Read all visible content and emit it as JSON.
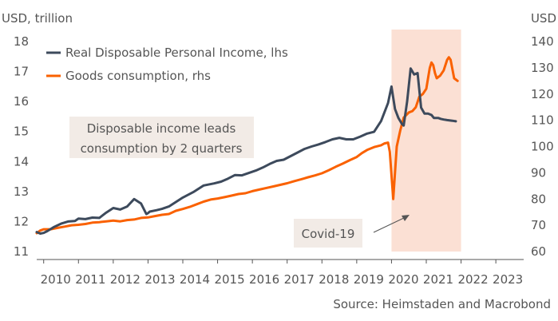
{
  "chart_data": {
    "type": "line",
    "left_axis_unit": "USD, trillion",
    "right_axis_unit": "USD",
    "x_ticks": [
      "2010",
      "2011",
      "2012",
      "2013",
      "2014",
      "2015",
      "2016",
      "2017",
      "2018",
      "2019",
      "2020",
      "2021",
      "2022",
      "2023"
    ],
    "xlim": [
      2009.8,
      2023.8
    ],
    "y_left": {
      "ylim": [
        11,
        18
      ],
      "ticks": [
        11,
        12,
        13,
        14,
        15,
        16,
        17,
        18
      ]
    },
    "y_right": {
      "ylim": [
        60,
        140
      ],
      "ticks": [
        60,
        70,
        80,
        90,
        100,
        110,
        120,
        130,
        140
      ]
    },
    "shaded_region": {
      "label": "Covid-19",
      "x_range": [
        2020.0,
        2022.0
      ],
      "color": "#fbe0d4"
    },
    "annotation": {
      "lines": [
        "Disposable income leads",
        "consumption by 2 quarters"
      ]
    },
    "colors": {
      "income": "#3d4a5c",
      "consumption": "#fa6100"
    },
    "source": "Source: Heimstaden and Macrobond",
    "series": [
      {
        "name": "Real Disposable Personal Income, lhs",
        "axis": "left",
        "x": [
          2009.8,
          2009.9,
          2010.0,
          2010.1,
          2010.3,
          2010.5,
          2010.7,
          2010.9,
          2011.0,
          2011.2,
          2011.4,
          2011.6,
          2011.8,
          2012.0,
          2012.2,
          2012.4,
          2012.6,
          2012.8,
          2012.95,
          2013.0,
          2013.05,
          2013.25,
          2013.4,
          2013.6,
          2013.8,
          2014.0,
          2014.3,
          2014.6,
          2014.9,
          2015.1,
          2015.3,
          2015.5,
          2015.7,
          2015.9,
          2016.1,
          2016.3,
          2016.5,
          2016.7,
          2016.9,
          2017.1,
          2017.3,
          2017.5,
          2017.7,
          2017.9,
          2018.1,
          2018.3,
          2018.5,
          2018.7,
          2018.9,
          2019.1,
          2019.3,
          2019.5,
          2019.7,
          2019.9,
          2020.0,
          2020.1,
          2020.2,
          2020.3,
          2020.35,
          2020.45,
          2020.55,
          2020.65,
          2020.75,
          2020.85,
          2020.95,
          2021.05,
          2021.15,
          2021.22,
          2021.28,
          2021.35,
          2021.42,
          2021.5,
          2021.6,
          2021.75,
          2021.85
        ],
        "values": [
          11.65,
          11.6,
          11.62,
          11.68,
          11.82,
          11.93,
          12.0,
          12.02,
          12.1,
          12.08,
          12.13,
          12.12,
          12.3,
          12.45,
          12.4,
          12.5,
          12.75,
          12.6,
          12.25,
          12.28,
          12.33,
          12.38,
          12.42,
          12.5,
          12.65,
          12.8,
          12.98,
          13.2,
          13.27,
          13.33,
          13.43,
          13.55,
          13.54,
          13.62,
          13.7,
          13.8,
          13.92,
          14.02,
          14.06,
          14.18,
          14.3,
          14.42,
          14.5,
          14.57,
          14.65,
          14.74,
          14.79,
          14.74,
          14.74,
          14.83,
          14.93,
          14.99,
          15.35,
          15.95,
          16.5,
          15.75,
          15.45,
          15.25,
          15.2,
          16.0,
          17.1,
          16.9,
          16.95,
          15.8,
          15.6,
          15.6,
          15.55,
          15.45,
          15.45,
          15.45,
          15.42,
          15.4,
          15.38,
          15.36,
          15.34
        ]
      },
      {
        "name": "Goods consumption, rhs",
        "axis": "right",
        "x": [
          2009.8,
          2009.9,
          2010.0,
          2010.2,
          2010.4,
          2010.6,
          2010.8,
          2011.0,
          2011.2,
          2011.4,
          2011.6,
          2011.8,
          2012.0,
          2012.2,
          2012.4,
          2012.6,
          2012.8,
          2013.0,
          2013.2,
          2013.4,
          2013.6,
          2013.8,
          2014.0,
          2014.2,
          2014.4,
          2014.6,
          2014.8,
          2015.0,
          2015.2,
          2015.4,
          2015.6,
          2015.8,
          2016.0,
          2016.2,
          2016.4,
          2016.6,
          2016.8,
          2017.0,
          2017.2,
          2017.4,
          2017.6,
          2017.8,
          2018.0,
          2018.2,
          2018.4,
          2018.6,
          2018.8,
          2019.0,
          2019.15,
          2019.3,
          2019.5,
          2019.7,
          2019.8,
          2019.9,
          2019.95,
          2020.05,
          2020.15,
          2020.25,
          2020.35,
          2020.5,
          2020.6,
          2020.7,
          2020.8,
          2020.9,
          2021.0,
          2021.05,
          2021.1,
          2021.15,
          2021.2,
          2021.25,
          2021.3,
          2021.4,
          2021.5,
          2021.6,
          2021.65,
          2021.7,
          2021.8,
          2021.9
        ],
        "values": [
          67,
          68,
          68.5,
          68.5,
          69,
          69.5,
          70,
          70.2,
          70.5,
          71,
          71.2,
          71.5,
          71.8,
          71.5,
          72,
          72.2,
          72.8,
          73,
          73.5,
          74,
          74.3,
          75.5,
          76.2,
          77,
          78,
          79,
          79.8,
          80.2,
          80.7,
          81.3,
          81.9,
          82.2,
          83,
          83.6,
          84.2,
          84.8,
          85.4,
          86,
          86.8,
          87.5,
          88.3,
          89,
          89.8,
          91,
          92.3,
          93.5,
          94.8,
          96,
          97.5,
          98.7,
          99.8,
          100.5,
          101.2,
          101.5,
          98,
          80,
          100,
          106,
          111,
          113,
          113.5,
          115,
          119,
          120,
          122,
          126,
          130,
          132,
          131,
          128,
          126,
          127,
          129,
          133,
          134,
          133,
          126,
          125
        ]
      }
    ]
  }
}
